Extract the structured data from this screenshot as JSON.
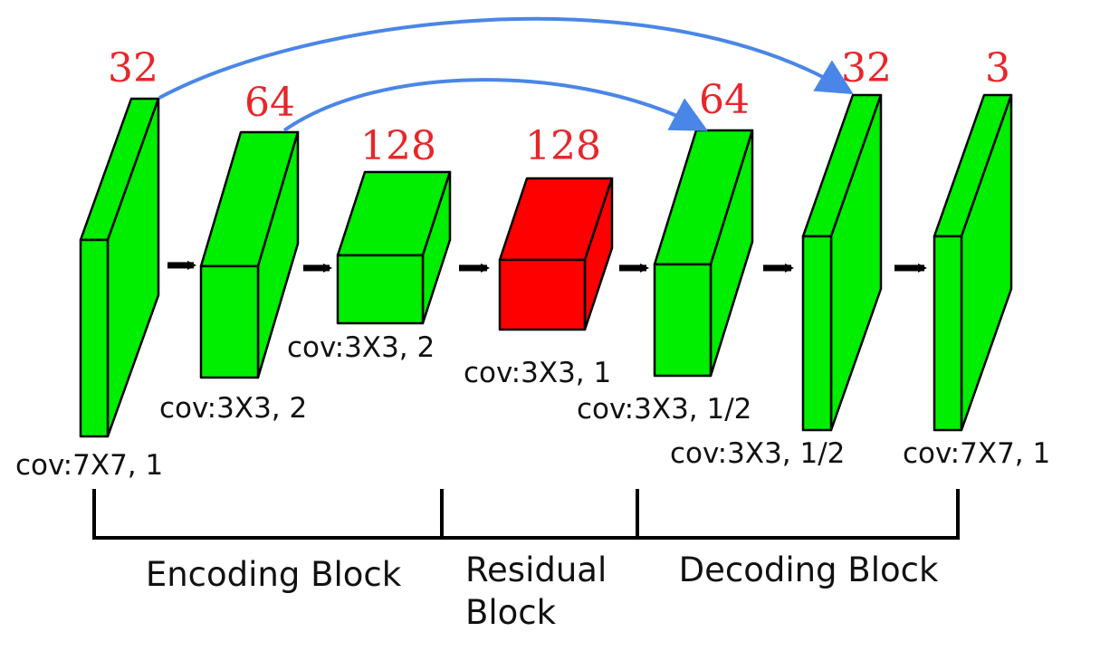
{
  "colors": {
    "layer_fill": "#00ee00",
    "residual_fill": "#ff0000",
    "channel_text": "#e8262a",
    "skip_arrow": "#4a86e8",
    "edge": "#000000",
    "flow_arrow": "#000000"
  },
  "layers": [
    {
      "channels": "32",
      "conv": "cov:7X7, 1",
      "kind": "encoding"
    },
    {
      "channels": "64",
      "conv": "cov:3X3, 2",
      "kind": "encoding"
    },
    {
      "channels": "128",
      "conv": "cov:3X3, 2",
      "kind": "encoding"
    },
    {
      "channels": "128",
      "conv": "cov:3X3, 1",
      "kind": "residual"
    },
    {
      "channels": "64",
      "conv": "cov:3X3, 1/2",
      "kind": "decoding"
    },
    {
      "channels": "32",
      "conv": "cov:3X3, 1/2",
      "kind": "decoding"
    },
    {
      "channels": "3",
      "conv": "cov:7X7, 1",
      "kind": "decoding"
    }
  ],
  "skip_connections": [
    {
      "from_layer": 0,
      "to_layer": 5
    },
    {
      "from_layer": 1,
      "to_layer": 4
    }
  ],
  "blocks": [
    {
      "label_lines": [
        "Encoding Block"
      ]
    },
    {
      "label_lines": [
        "Residual",
        "Block"
      ]
    },
    {
      "label_lines": [
        "Decoding Block"
      ]
    }
  ]
}
